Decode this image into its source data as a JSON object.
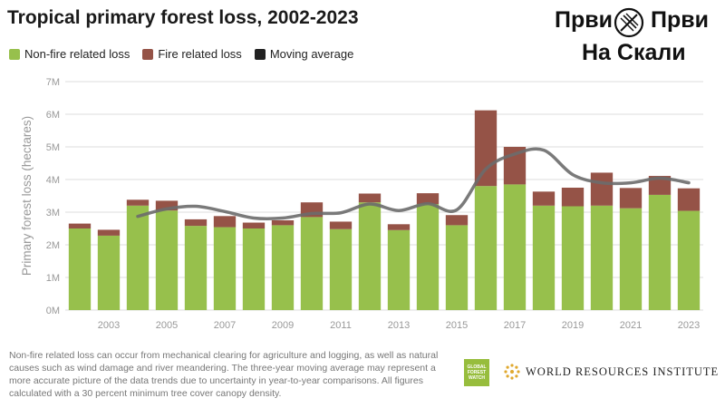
{
  "title": "Tropical primary forest loss, 2002-2023",
  "legend": {
    "non_fire": "Non-fire related loss",
    "fire": "Fire related loss",
    "moving_avg": "Moving average"
  },
  "brand": {
    "word1": "Први",
    "word2": "Први",
    "line2": "На Скали"
  },
  "footnote": "Non-fire related loss can occur from mechanical clearing for agriculture and logging, as well as natural causes such as wind damage and river meandering. The three-year moving average may represent a more accurate picture of the data trends due to uncertainty in year-to-year comparisons. All figures calculated with a 30 percent minimum tree cover canopy density.",
  "gfw_logo": {
    "line1": "GLOBAL",
    "line2": "FOREST",
    "line3": "WATCH"
  },
  "wri_text": "WORLD RESOURCES INSTITUTE",
  "colors": {
    "non_fire": "#97c04c",
    "fire": "#955347",
    "moving_avg": "#6b6b6b",
    "grid": "#dddddd",
    "axis_text": "#999999"
  },
  "chart_data": {
    "type": "bar",
    "stacked": true,
    "title": "Tropical primary forest loss, 2002-2023",
    "ylabel": "Primary forest loss (hectares)",
    "ylim": [
      0,
      7000000
    ],
    "yticks": [
      0,
      1000000,
      2000000,
      3000000,
      4000000,
      5000000,
      6000000,
      7000000
    ],
    "ytick_labels": [
      "0M",
      "1M",
      "2M",
      "3M",
      "4M",
      "5M",
      "6M",
      "7M"
    ],
    "categories": [
      2002,
      2003,
      2004,
      2005,
      2006,
      2007,
      2008,
      2009,
      2010,
      2011,
      2012,
      2013,
      2014,
      2015,
      2016,
      2017,
      2018,
      2019,
      2020,
      2021,
      2022,
      2023
    ],
    "xtick_labels": [
      "2003",
      "2005",
      "2007",
      "2009",
      "2011",
      "2013",
      "2015",
      "2017",
      "2019",
      "2021",
      "2023"
    ],
    "series": [
      {
        "name": "Non-fire related loss",
        "values": [
          2500000,
          2280000,
          3200000,
          3050000,
          2580000,
          2540000,
          2500000,
          2600000,
          2850000,
          2480000,
          3300000,
          2450000,
          3250000,
          2600000,
          3800000,
          3850000,
          3200000,
          3180000,
          3200000,
          3120000,
          3530000,
          3040000
        ]
      },
      {
        "name": "Fire related loss",
        "values": [
          150000,
          180000,
          180000,
          300000,
          200000,
          340000,
          180000,
          150000,
          450000,
          230000,
          270000,
          180000,
          330000,
          310000,
          2320000,
          1150000,
          430000,
          570000,
          1010000,
          620000,
          580000,
          690000
        ]
      },
      {
        "name": "Moving average",
        "type": "line",
        "x": [
          2004,
          2005,
          2006,
          2007,
          2008,
          2009,
          2010,
          2011,
          2012,
          2013,
          2014,
          2015,
          2016,
          2017,
          2018,
          2019,
          2020,
          2021,
          2022,
          2023
        ],
        "values": [
          2870000,
          3100000,
          3180000,
          3020000,
          2820000,
          2820000,
          2960000,
          2980000,
          3250000,
          3050000,
          3260000,
          3070000,
          4320000,
          4780000,
          4900000,
          4150000,
          3900000,
          3900000,
          4040000,
          3900000
        ]
      }
    ],
    "grid": true,
    "legend_position": "top-left"
  }
}
